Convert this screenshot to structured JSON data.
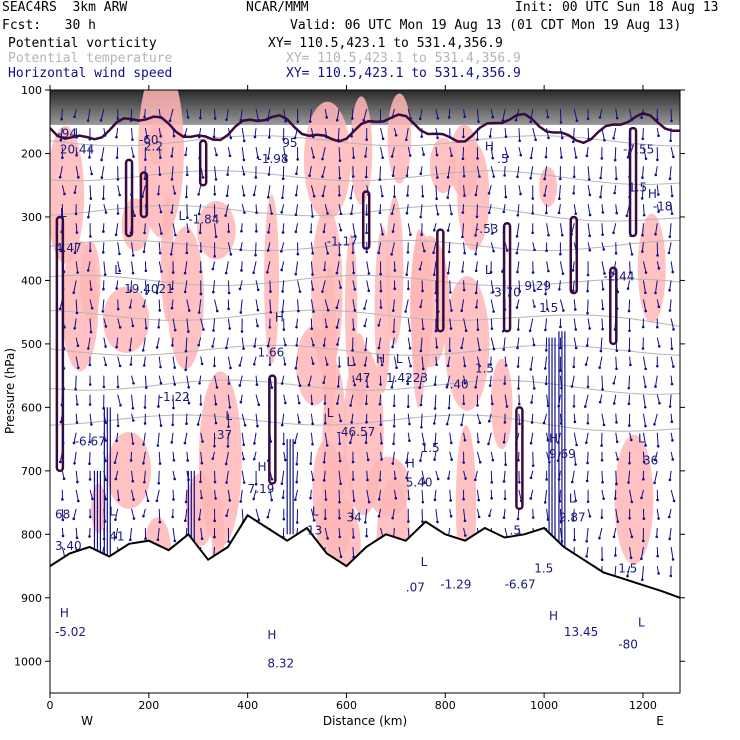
{
  "header": {
    "model": "SEAC4RS  3km ARW",
    "institution": "NCAR/MMM",
    "init": "Init: 00 UTC Sun 18 Aug 13",
    "fcst": "Fcst:   30 h",
    "valid": "Valid: 06 UTC Mon 19 Aug 13 (01 CDT Mon 19 Aug 13)",
    "fields": [
      {
        "name": "Potential vorticity",
        "xy": "XY= 110.5,423.1 to 531.4,356.9",
        "color": "#000000"
      },
      {
        "name": "Potential temperature",
        "xy": "XY= 110.5,423.1 to 531.4,356.9",
        "color": "#b5b5b5"
      },
      {
        "name": "Horizontal wind speed",
        "xy": "XY= 110.5,423.1 to 531.4,356.9",
        "color": "#10108a"
      }
    ]
  },
  "chart_data": {
    "type": "cross-section",
    "xlabel": "Distance (km)",
    "ylabel": "Pressure (hPa)",
    "xlim": [
      0,
      1275
    ],
    "ylim": [
      1050,
      100
    ],
    "x_ticks": [
      0,
      200,
      400,
      600,
      800,
      1000,
      1200
    ],
    "y_ticks": [
      100,
      200,
      300,
      400,
      500,
      600,
      700,
      800,
      900,
      1000
    ],
    "x_end_labels": {
      "left": "W",
      "right": "E"
    },
    "terrain": [
      [
        0,
        850
      ],
      [
        40,
        830
      ],
      [
        80,
        820
      ],
      [
        120,
        835
      ],
      [
        160,
        815
      ],
      [
        200,
        810
      ],
      [
        240,
        825
      ],
      [
        280,
        800
      ],
      [
        320,
        840
      ],
      [
        360,
        820
      ],
      [
        400,
        770
      ],
      [
        440,
        790
      ],
      [
        480,
        810
      ],
      [
        520,
        790
      ],
      [
        560,
        830
      ],
      [
        600,
        850
      ],
      [
        640,
        820
      ],
      [
        680,
        800
      ],
      [
        720,
        810
      ],
      [
        760,
        780
      ],
      [
        800,
        800
      ],
      [
        840,
        810
      ],
      [
        880,
        790
      ],
      [
        920,
        805
      ],
      [
        960,
        800
      ],
      [
        1000,
        790
      ],
      [
        1040,
        820
      ],
      [
        1080,
        840
      ],
      [
        1120,
        860
      ],
      [
        1160,
        870
      ],
      [
        1200,
        880
      ],
      [
        1240,
        890
      ],
      [
        1275,
        900
      ]
    ],
    "annotations": [
      {
        "x": 20,
        "p": 200,
        "text": "20.44"
      },
      {
        "x": 190,
        "p": 195,
        "text": "2.2"
      },
      {
        "x": 420,
        "p": 215,
        "text": "-1.98"
      },
      {
        "x": 1160,
        "p": 200,
        "text": "-7.55"
      },
      {
        "x": 1220,
        "p": 290,
        "text": "-18"
      },
      {
        "x": 280,
        "p": 310,
        "text": "-1.84"
      },
      {
        "x": 560,
        "p": 345,
        "text": "-1.17"
      },
      {
        "x": 860,
        "p": 325,
        "text": "-.53"
      },
      {
        "x": 10,
        "p": 355,
        "text": "4.47"
      },
      {
        "x": 150,
        "p": 420,
        "text": "19.4021"
      },
      {
        "x": 890,
        "p": 425,
        "text": "-3.70"
      },
      {
        "x": 960,
        "p": 415,
        "text": "9.29"
      },
      {
        "x": 1120,
        "p": 400,
        "text": "-2.44"
      },
      {
        "x": 420,
        "p": 520,
        "text": "1.66"
      },
      {
        "x": 610,
        "p": 560,
        "text": ".47"
      },
      {
        "x": 680,
        "p": 560,
        "text": "1.4223"
      },
      {
        "x": 800,
        "p": 570,
        "text": "-.40"
      },
      {
        "x": 220,
        "p": 590,
        "text": "-1.22"
      },
      {
        "x": 50,
        "p": 660,
        "text": "-6.67"
      },
      {
        "x": 330,
        "p": 650,
        "text": ".37"
      },
      {
        "x": 580,
        "p": 645,
        "text": "-46.57"
      },
      {
        "x": 750,
        "p": 670,
        "text": "1.5"
      },
      {
        "x": 1010,
        "p": 680,
        "text": "9.69"
      },
      {
        "x": 1200,
        "p": 690,
        "text": "36"
      },
      {
        "x": 400,
        "p": 735,
        "text": "7.19"
      },
      {
        "x": 720,
        "p": 725,
        "text": "5.40"
      },
      {
        "x": 10,
        "p": 775,
        "text": "68"
      },
      {
        "x": 10,
        "p": 825,
        "text": "3.40"
      },
      {
        "x": 120,
        "p": 810,
        "text": "41"
      },
      {
        "x": 520,
        "p": 800,
        "text": "13"
      },
      {
        "x": 600,
        "p": 780,
        "text": "34"
      },
      {
        "x": 1030,
        "p": 780,
        "text": "2.87"
      },
      {
        "x": 720,
        "p": 890,
        "text": ".07"
      },
      {
        "x": 790,
        "p": 885,
        "text": "-1.29"
      },
      {
        "x": 920,
        "p": 885,
        "text": "-6.67"
      },
      {
        "x": 1040,
        "p": 960,
        "text": "13.45"
      },
      {
        "x": 1150,
        "p": 980,
        "text": "-80"
      },
      {
        "x": 10,
        "p": 960,
        "text": "-5.02"
      },
      {
        "x": 440,
        "p": 1010,
        "text": "8.32"
      }
    ],
    "extrema_labels": [
      {
        "x": 15,
        "p": 175,
        "text": "-94"
      },
      {
        "x": 180,
        "p": 185,
        "text": "-60"
      },
      {
        "x": 470,
        "p": 190,
        "text": "95"
      },
      {
        "x": 880,
        "p": 195,
        "text": "H"
      },
      {
        "x": 905,
        "p": 215,
        "text": ".5"
      },
      {
        "x": 1210,
        "p": 270,
        "text": "H"
      },
      {
        "x": 260,
        "p": 305,
        "text": "L"
      },
      {
        "x": 20,
        "p": 300,
        "text": "L"
      },
      {
        "x": 880,
        "p": 390,
        "text": "L"
      },
      {
        "x": 130,
        "p": 390,
        "text": "L"
      },
      {
        "x": 455,
        "p": 465,
        "text": "H"
      },
      {
        "x": 600,
        "p": 535,
        "text": "L"
      },
      {
        "x": 660,
        "p": 530,
        "text": "H"
      },
      {
        "x": 700,
        "p": 530,
        "text": "L"
      },
      {
        "x": 355,
        "p": 620,
        "text": "L"
      },
      {
        "x": 560,
        "p": 615,
        "text": "L"
      },
      {
        "x": 420,
        "p": 700,
        "text": "H"
      },
      {
        "x": 720,
        "p": 695,
        "text": "H"
      },
      {
        "x": 1010,
        "p": 655,
        "text": "H"
      },
      {
        "x": 1190,
        "p": 655,
        "text": "L"
      },
      {
        "x": 120,
        "p": 770,
        "text": "L"
      },
      {
        "x": 530,
        "p": 770,
        "text": "L"
      },
      {
        "x": 1050,
        "p": 750,
        "text": "L"
      },
      {
        "x": 20,
        "p": 930,
        "text": "H"
      },
      {
        "x": 440,
        "p": 965,
        "text": "H"
      },
      {
        "x": 1010,
        "p": 935,
        "text": "H"
      },
      {
        "x": 1190,
        "p": 945,
        "text": "L"
      },
      {
        "x": 750,
        "p": 850,
        "text": "L"
      },
      {
        "x": 980,
        "p": 860,
        "text": "1.5"
      },
      {
        "x": 930,
        "p": 800,
        "text": ".5"
      },
      {
        "x": 860,
        "p": 545,
        "text": "1.5"
      },
      {
        "x": 990,
        "p": 450,
        "text": "1.5"
      },
      {
        "x": 1170,
        "p": 260,
        "text": "1.5"
      },
      {
        "x": 1150,
        "p": 860,
        "text": "1.5"
      }
    ],
    "colors": {
      "pv_high": "#ffb6b6",
      "pv_contour": "#3a0a3a",
      "theta": "#b5b5b5",
      "wind": "#10108a",
      "terrain": "#000000"
    }
  }
}
